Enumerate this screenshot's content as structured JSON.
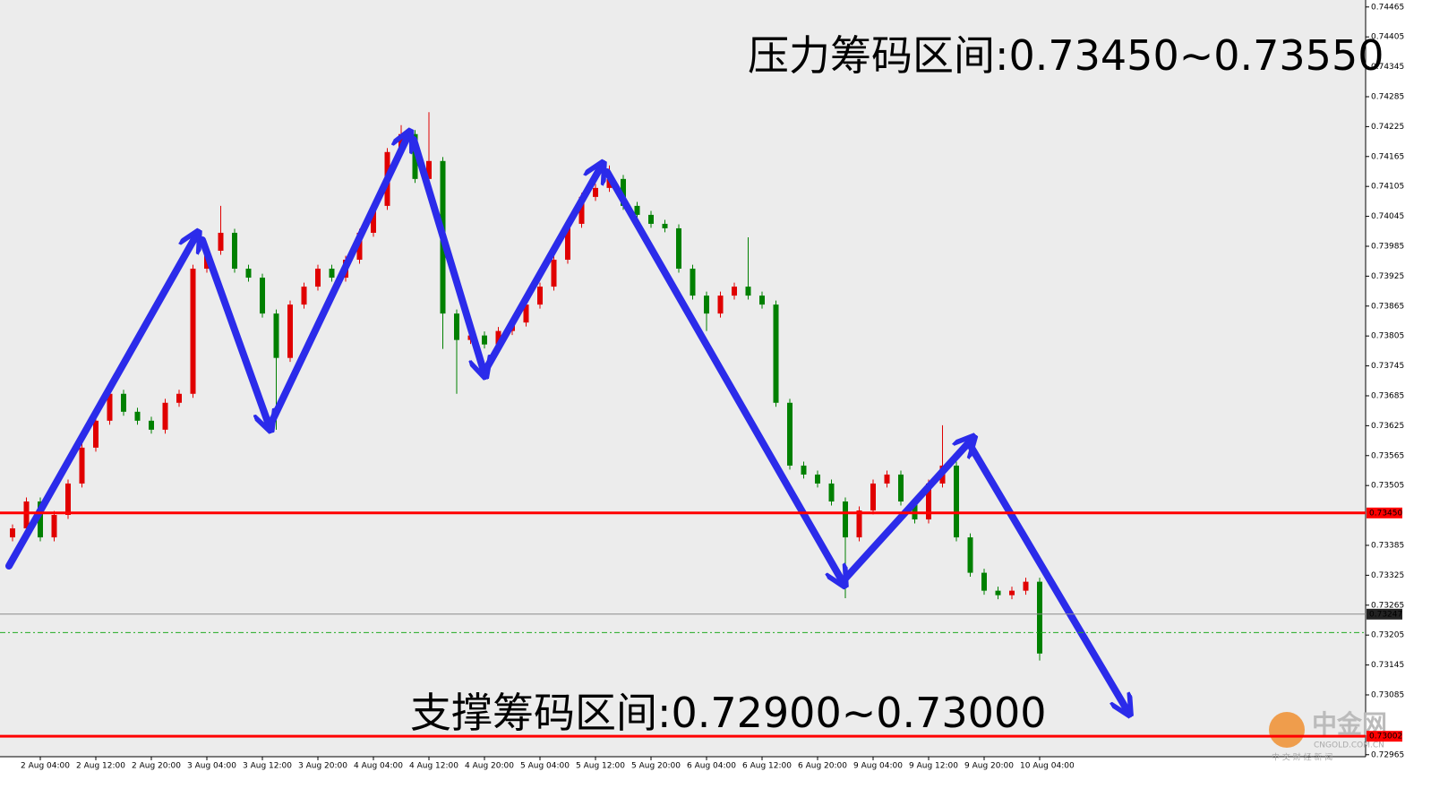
{
  "chart_data": {
    "type": "candlestick",
    "up_color": "#e00000",
    "down_color": "#008000",
    "categories": [
      null,
      null,
      "2 Aug 04:00",
      null,
      null,
      null,
      "2 Aug 12:00",
      null,
      null,
      null,
      "2 Aug 20:00",
      null,
      null,
      null,
      "3 Aug 04:00",
      null,
      null,
      null,
      "3 Aug 12:00",
      null,
      null,
      null,
      "3 Aug 20:00",
      null,
      null,
      null,
      "4 Aug 04:00",
      null,
      null,
      null,
      "4 Aug 12:00",
      null,
      null,
      null,
      "4 Aug 20:00",
      null,
      null,
      null,
      "5 Aug 04:00",
      null,
      null,
      null,
      "5 Aug 12:00",
      null,
      null,
      null,
      "5 Aug 20:00",
      null,
      null,
      null,
      "6 Aug 04:00",
      null,
      null,
      null,
      "6 Aug 12:00",
      null,
      null,
      null,
      "6 Aug 20:00",
      null,
      null,
      null,
      "9 Aug 04:00",
      null,
      null,
      null,
      "9 Aug 12:00",
      null,
      null,
      null,
      "9 Aug 20:00",
      null,
      null,
      null,
      "10 Aug 04:00"
    ],
    "open": [
      0.73401,
      0.73419,
      0.73473,
      0.73401,
      0.73446,
      0.73509,
      0.73581,
      0.73635,
      0.73689,
      0.73653,
      0.73635,
      0.73617,
      0.73671,
      0.73689,
      0.7394,
      0.73976,
      0.74012,
      0.7394,
      0.73922,
      0.7385,
      0.73761,
      0.73868,
      0.73904,
      0.7394,
      0.73922,
      0.73958,
      0.74012,
      0.74066,
      0.74174,
      0.7421,
      0.7412,
      0.74156,
      0.7385,
      0.73797,
      0.73806,
      0.73788,
      0.73815,
      0.73832,
      0.73868,
      0.73904,
      0.73958,
      0.7403,
      0.74084,
      0.74102,
      0.7412,
      0.74066,
      0.74048,
      0.7403,
      0.74021,
      0.7394,
      0.73886,
      0.7385,
      0.73886,
      0.73904,
      0.73886,
      0.73868,
      0.73671,
      0.73545,
      0.73527,
      0.73509,
      0.73473,
      0.73401,
      0.73455,
      0.73509,
      0.73527,
      0.73473,
      0.73437,
      0.73509,
      0.73545,
      0.73401,
      0.7333,
      0.73294,
      0.73285,
      0.73294,
      0.73312
    ],
    "high": [
      0.73427,
      0.73481,
      0.73481,
      0.73454,
      0.73517,
      0.73589,
      0.73643,
      0.73697,
      0.73697,
      0.73661,
      0.73643,
      0.73679,
      0.73697,
      0.73948,
      0.73984,
      0.74066,
      0.7402,
      0.73948,
      0.7393,
      0.73858,
      0.73876,
      0.73912,
      0.73948,
      0.73948,
      0.73966,
      0.7402,
      0.74074,
      0.74182,
      0.74228,
      0.74218,
      0.74254,
      0.74164,
      0.73858,
      0.73814,
      0.73814,
      0.73823,
      0.7384,
      0.73876,
      0.73912,
      0.73966,
      0.74038,
      0.74092,
      0.7411,
      0.74147,
      0.74128,
      0.74074,
      0.74056,
      0.74038,
      0.74029,
      0.73948,
      0.73894,
      0.73894,
      0.73912,
      0.74003,
      0.73894,
      0.73876,
      0.73679,
      0.73553,
      0.73535,
      0.73517,
      0.73481,
      0.73463,
      0.73517,
      0.73535,
      0.73535,
      0.73481,
      0.73517,
      0.73626,
      0.73553,
      0.73409,
      0.73338,
      0.73302,
      0.73302,
      0.7332,
      0.7332
    ],
    "low": [
      0.73393,
      0.73411,
      0.73393,
      0.73393,
      0.73438,
      0.73501,
      0.73573,
      0.73627,
      0.73645,
      0.73627,
      0.73609,
      0.73609,
      0.73663,
      0.73681,
      0.73932,
      0.73968,
      0.73932,
      0.73914,
      0.73842,
      0.73617,
      0.73753,
      0.7386,
      0.73896,
      0.73914,
      0.73914,
      0.7395,
      0.74004,
      0.74058,
      0.74166,
      0.74112,
      0.74112,
      0.73779,
      0.73689,
      0.73789,
      0.7378,
      0.7378,
      0.73807,
      0.73824,
      0.7386,
      0.73896,
      0.7395,
      0.74022,
      0.74076,
      0.74094,
      0.74058,
      0.7404,
      0.74022,
      0.74013,
      0.73932,
      0.73878,
      0.73815,
      0.73842,
      0.73878,
      0.73878,
      0.7386,
      0.73663,
      0.73537,
      0.73519,
      0.73501,
      0.73465,
      0.73279,
      0.73393,
      0.73447,
      0.73501,
      0.73465,
      0.73429,
      0.73429,
      0.73501,
      0.73393,
      0.73322,
      0.73286,
      0.73277,
      0.73277,
      0.73286,
      0.73154
    ],
    "close": [
      0.73419,
      0.73473,
      0.73401,
      0.73446,
      0.73509,
      0.73581,
      0.73635,
      0.73689,
      0.73653,
      0.73635,
      0.73617,
      0.73671,
      0.73689,
      0.7394,
      0.73976,
      0.74012,
      0.7394,
      0.73922,
      0.7385,
      0.73761,
      0.73868,
      0.73904,
      0.7394,
      0.73922,
      0.73958,
      0.74012,
      0.74066,
      0.74174,
      0.7421,
      0.7412,
      0.74156,
      0.7385,
      0.73797,
      0.73806,
      0.73788,
      0.73815,
      0.73832,
      0.73868,
      0.73904,
      0.73958,
      0.7403,
      0.74084,
      0.74102,
      0.7412,
      0.74066,
      0.74048,
      0.7403,
      0.74021,
      0.7394,
      0.73886,
      0.7385,
      0.73886,
      0.73904,
      0.73886,
      0.73868,
      0.73671,
      0.73545,
      0.73527,
      0.73509,
      0.73473,
      0.73401,
      0.73455,
      0.73509,
      0.73527,
      0.73473,
      0.73437,
      0.73509,
      0.73545,
      0.73401,
      0.7333,
      0.73294,
      0.73285,
      0.73294,
      0.73312,
      0.73168
    ],
    "ylim": [
      0.72961,
      0.74479
    ],
    "yticks": [
      0.74465,
      0.74405,
      0.74345,
      0.74285,
      0.74225,
      0.74165,
      0.74105,
      0.74045,
      0.73985,
      0.73925,
      0.73865,
      0.73805,
      0.73745,
      0.73685,
      0.73625,
      0.73565,
      0.73505,
      0.73385,
      0.73325,
      0.73265,
      0.73205,
      0.73145,
      0.73085,
      0.72965
    ],
    "levels": [
      {
        "value": 0.7345,
        "label": "0.73450",
        "color": "#ff0000"
      },
      {
        "value": 0.73002,
        "label": "0.73002",
        "color": "#ff0000"
      },
      {
        "value": 0.73247,
        "label": "0.73247",
        "color": "#8c8c8c"
      },
      {
        "value": 0.7321,
        "color": "#22aa22",
        "style": "dashed"
      }
    ],
    "annotations": [
      "压力筹码区间:0.73450~0.73550",
      "支撑筹码区间:0.72900~0.73000"
    ],
    "watermark": {
      "name": "中金网",
      "site": "CNGOLD.COM.CN",
      "slogan": "中 文 财 经 新 闻"
    }
  }
}
